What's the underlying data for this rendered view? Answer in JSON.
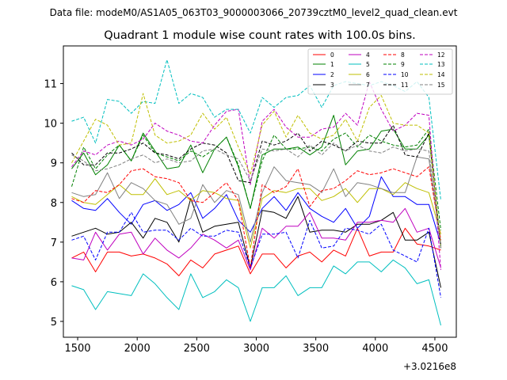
{
  "chart_data": {
    "type": "line",
    "suptitle": "Data file: modeM0/AS1A05_063T03_9000003066_20739cztM0_level2_quad_clean.evt",
    "title": "Quadrant 1 module wise count rates with 100.0s bins.",
    "xlabel": "",
    "ylabel": "",
    "x_offset_label": "+3.0216e8",
    "xlim": [
      1380,
      4680
    ],
    "ylim": [
      4.6,
      11.95
    ],
    "xticks": [
      1500,
      2000,
      2500,
      3000,
      3500,
      4000,
      4500
    ],
    "yticks": [
      5,
      6,
      7,
      8,
      9,
      10,
      11
    ],
    "legend_position": "top-right",
    "x": [
      1450,
      1550,
      1650,
      1750,
      1850,
      1950,
      2050,
      2150,
      2250,
      2350,
      2450,
      2550,
      2650,
      2750,
      2850,
      2950,
      3050,
      3150,
      3250,
      3350,
      3450,
      3550,
      3650,
      3750,
      3850,
      3950,
      4050,
      4150,
      4250,
      4350,
      4450,
      4550
    ],
    "series": [
      {
        "name": "0",
        "color": "#ff0000",
        "dash": "solid",
        "values": [
          6.6,
          6.75,
          6.25,
          6.75,
          6.75,
          6.65,
          6.7,
          6.6,
          6.45,
          6.15,
          6.55,
          6.35,
          6.7,
          6.8,
          6.9,
          6.2,
          6.7,
          6.7,
          6.35,
          6.65,
          6.75,
          6.5,
          6.8,
          6.65,
          7.35,
          6.65,
          6.75,
          6.75,
          7.35,
          6.95,
          6.9,
          6.8
        ]
      },
      {
        "name": "1",
        "color": "#008000",
        "dash": "solid",
        "values": [
          8.85,
          9.25,
          8.7,
          8.95,
          9.45,
          9.05,
          9.75,
          9.3,
          8.85,
          8.9,
          9.45,
          8.75,
          9.35,
          9.65,
          8.9,
          7.85,
          9.2,
          9.35,
          9.35,
          9.4,
          9.2,
          9.4,
          10.2,
          8.95,
          9.3,
          9.35,
          9.8,
          9.85,
          9.35,
          9.35,
          9.7,
          6.9
        ]
      },
      {
        "name": "2",
        "color": "#0000ff",
        "dash": "solid",
        "values": [
          8.05,
          7.85,
          7.8,
          8.1,
          7.75,
          7.45,
          7.95,
          8.05,
          7.8,
          7.95,
          8.25,
          7.6,
          7.85,
          8.2,
          7.55,
          7.25,
          7.85,
          8.15,
          7.8,
          8.25,
          7.85,
          7.65,
          7.5,
          7.85,
          7.35,
          7.65,
          8.65,
          8.15,
          8.15,
          7.95,
          7.95,
          6.95
        ]
      },
      {
        "name": "3",
        "color": "#000000",
        "dash": "solid",
        "values": [
          7.15,
          7.25,
          7.35,
          7.2,
          7.25,
          7.5,
          7.1,
          7.6,
          7.5,
          7.0,
          8.1,
          7.25,
          7.4,
          7.45,
          7.5,
          6.35,
          7.8,
          7.75,
          7.6,
          8.15,
          7.25,
          7.3,
          7.3,
          7.25,
          7.45,
          7.45,
          7.55,
          7.75,
          7.05,
          7.05,
          7.25,
          5.85
        ]
      },
      {
        "name": "4",
        "color": "#bf00bf",
        "dash": "solid",
        "values": [
          6.6,
          6.55,
          7.25,
          6.8,
          7.2,
          7.25,
          6.7,
          7.1,
          6.8,
          6.6,
          6.85,
          7.2,
          7.05,
          6.85,
          7.05,
          6.3,
          7.35,
          7.1,
          7.4,
          7.4,
          7.75,
          7.1,
          7.1,
          7.05,
          7.5,
          7.5,
          7.55,
          7.5,
          7.85,
          7.25,
          7.35,
          6.35
        ]
      },
      {
        "name": "5",
        "color": "#00bfbf",
        "dash": "solid",
        "values": [
          5.9,
          5.8,
          5.3,
          5.75,
          5.7,
          5.65,
          6.2,
          5.95,
          5.6,
          5.3,
          6.2,
          5.6,
          5.75,
          6.05,
          5.85,
          5.0,
          5.85,
          5.85,
          6.15,
          5.65,
          5.85,
          5.85,
          6.4,
          6.2,
          6.5,
          6.5,
          6.25,
          6.55,
          6.35,
          5.95,
          6.05,
          4.9
        ]
      },
      {
        "name": "6",
        "color": "#bfbf00",
        "dash": "solid",
        "values": [
          8.15,
          8.0,
          7.95,
          8.2,
          8.45,
          8.2,
          8.2,
          8.6,
          8.2,
          8.3,
          8.05,
          8.3,
          8.25,
          8.1,
          8.05,
          6.85,
          8.1,
          8.3,
          8.25,
          8.35,
          8.35,
          8.05,
          8.15,
          8.35,
          8.0,
          8.35,
          8.35,
          8.2,
          8.5,
          8.35,
          8.25,
          7.2
        ]
      },
      {
        "name": "7",
        "color": "#808080",
        "dash": "solid",
        "values": [
          8.25,
          8.15,
          8.2,
          8.75,
          8.1,
          8.5,
          8.35,
          8.05,
          7.95,
          7.45,
          7.6,
          8.45,
          8.0,
          8.3,
          8.2,
          7.0,
          8.25,
          8.9,
          8.55,
          8.5,
          8.45,
          8.25,
          8.85,
          8.15,
          8.5,
          8.45,
          8.35,
          8.25,
          8.25,
          9.15,
          9.1,
          6.95
        ]
      },
      {
        "name": "8",
        "color": "#ff0000",
        "dash": "dash",
        "values": [
          8.1,
          8.0,
          8.3,
          8.25,
          8.45,
          8.8,
          8.85,
          8.65,
          8.6,
          8.5,
          8.05,
          8.0,
          8.25,
          8.5,
          8.05,
          6.35,
          8.45,
          8.25,
          8.4,
          8.85,
          7.9,
          8.3,
          8.35,
          8.55,
          8.8,
          8.7,
          8.75,
          8.85,
          8.75,
          8.65,
          8.9,
          7.05
        ]
      },
      {
        "name": "9",
        "color": "#008000",
        "dash": "dash",
        "values": [
          8.4,
          9.4,
          8.85,
          9.2,
          9.45,
          9.05,
          9.7,
          9.25,
          9.15,
          9.05,
          9.3,
          9.15,
          9.35,
          9.65,
          8.95,
          7.85,
          9.05,
          9.7,
          9.35,
          9.35,
          9.4,
          9.3,
          9.6,
          9.75,
          9.4,
          9.7,
          9.55,
          9.45,
          9.4,
          9.45,
          9.85,
          7.3
        ]
      },
      {
        "name": "10",
        "color": "#0000ff",
        "dash": "dash",
        "values": [
          7.05,
          7.15,
          6.55,
          7.25,
          7.25,
          7.75,
          7.25,
          7.3,
          7.3,
          7.05,
          7.35,
          7.15,
          7.15,
          7.3,
          7.25,
          6.35,
          7.2,
          7.2,
          7.25,
          6.6,
          7.55,
          6.85,
          6.9,
          7.35,
          7.3,
          7.2,
          7.45,
          6.8,
          6.65,
          6.5,
          7.35,
          5.6
        ]
      },
      {
        "name": "11",
        "color": "#000000",
        "dash": "dash",
        "values": [
          9.25,
          8.95,
          8.95,
          9.25,
          9.25,
          9.35,
          9.5,
          9.25,
          9.2,
          9.1,
          9.35,
          9.5,
          9.45,
          9.25,
          8.55,
          8.5,
          9.55,
          9.45,
          9.55,
          9.75,
          9.3,
          9.55,
          9.45,
          9.3,
          9.55,
          9.5,
          9.5,
          9.95,
          9.2,
          9.15,
          9.75,
          6.85
        ]
      },
      {
        "name": "12",
        "color": "#bf00bf",
        "dash": "dash",
        "values": [
          8.9,
          9.3,
          9.2,
          9.45,
          9.55,
          9.45,
          9.6,
          10.0,
          9.8,
          9.7,
          9.55,
          9.5,
          9.95,
          10.3,
          10.35,
          8.45,
          10.05,
          10.35,
          9.9,
          9.65,
          9.65,
          9.85,
          9.9,
          10.25,
          9.95,
          11.05,
          10.35,
          9.8,
          9.95,
          10.25,
          10.2,
          6.3
        ]
      },
      {
        "name": "13",
        "color": "#00bfbf",
        "dash": "dash",
        "values": [
          10.05,
          10.15,
          9.5,
          10.6,
          10.55,
          10.25,
          10.55,
          10.5,
          11.6,
          10.5,
          10.75,
          10.65,
          10.15,
          10.35,
          10.35,
          9.75,
          10.65,
          10.4,
          10.65,
          10.7,
          10.95,
          10.4,
          10.95,
          11.05,
          11.0,
          10.95,
          11.05,
          10.95,
          10.8,
          11.05,
          10.65,
          8.05
        ]
      },
      {
        "name": "14",
        "color": "#bfbf00",
        "dash": "dash",
        "values": [
          9.0,
          9.55,
          10.1,
          9.95,
          9.45,
          9.5,
          10.75,
          9.7,
          9.5,
          9.55,
          9.7,
          10.25,
          9.85,
          10.15,
          9.4,
          8.7,
          9.95,
          10.3,
          9.65,
          10.2,
          9.75,
          9.6,
          9.7,
          10.1,
          9.55,
          10.4,
          10.7,
          10.0,
          9.95,
          9.95,
          9.75,
          6.85
        ]
      },
      {
        "name": "15",
        "color": "#808080",
        "dash": "dash",
        "values": [
          9.2,
          9.05,
          8.8,
          8.85,
          8.95,
          9.1,
          9.2,
          9.0,
          9.1,
          9.0,
          9.05,
          9.3,
          9.35,
          9.2,
          9.1,
          8.55,
          9.35,
          9.3,
          9.35,
          9.15,
          9.45,
          9.2,
          9.5,
          9.3,
          9.45,
          9.3,
          9.25,
          9.4,
          9.3,
          9.35,
          9.3,
          6.85
        ]
      }
    ]
  }
}
